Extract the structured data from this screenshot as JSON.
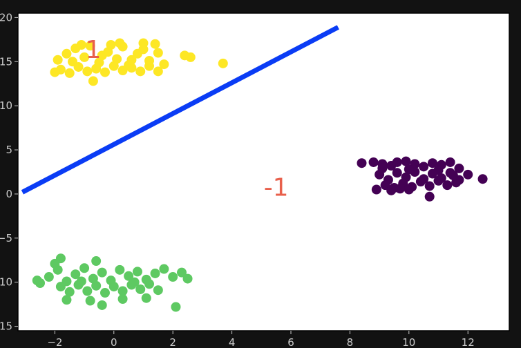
{
  "chart_data": {
    "type": "scatter",
    "title": "",
    "xlabel": "",
    "ylabel": "",
    "xlim": [
      -3.25,
      13.4
    ],
    "ylim": [
      -15.5,
      20.5
    ],
    "grid": false,
    "x_ticks": [
      -2,
      0,
      2,
      4,
      6,
      8,
      10,
      12
    ],
    "y_ticks": [
      -15,
      -10,
      -5,
      0,
      5,
      10,
      15,
      20
    ],
    "colors": {
      "background": "#121212",
      "plot_area": "#ffffff",
      "cluster_yellow": "#fde725",
      "cluster_purple": "#440154",
      "cluster_green": "#5ec962",
      "separator_line": "#0a3cf5",
      "annotation_text": "#e8604c"
    },
    "annotations": [
      {
        "text": "1",
        "x": -0.7,
        "y": 15.4
      },
      {
        "text": "-1",
        "x": 5.5,
        "y": -0.2
      }
    ],
    "decision_line": {
      "x": [
        -3.1,
        7.6
      ],
      "y": 0.2,
      "y_end": 18.9
    },
    "series": [
      {
        "color": "#fde725",
        "points": [
          [
            -1.9,
            15.2
          ],
          [
            -1.6,
            15.9
          ],
          [
            -1.3,
            16.5
          ],
          [
            -1.0,
            15.5
          ],
          [
            -0.8,
            16.8
          ],
          [
            -0.5,
            14.9
          ],
          [
            -0.2,
            16.1
          ],
          [
            0.1,
            15.3
          ],
          [
            0.3,
            16.7
          ],
          [
            0.5,
            14.6
          ],
          [
            0.8,
            15.9
          ],
          [
            1.0,
            16.4
          ],
          [
            1.2,
            15.1
          ],
          [
            1.5,
            16.0
          ],
          [
            1.7,
            14.7
          ],
          [
            -1.8,
            14.1
          ],
          [
            -1.5,
            13.7
          ],
          [
            -1.2,
            14.4
          ],
          [
            -0.9,
            13.9
          ],
          [
            -0.6,
            14.2
          ],
          [
            -0.3,
            13.8
          ],
          [
            0.0,
            14.5
          ],
          [
            0.3,
            14.0
          ],
          [
            0.6,
            14.3
          ],
          [
            0.9,
            13.9
          ],
          [
            1.2,
            14.5
          ],
          [
            1.5,
            13.9
          ],
          [
            -1.4,
            15.0
          ],
          [
            -0.4,
            15.7
          ],
          [
            0.6,
            15.2
          ],
          [
            1.0,
            17.1
          ],
          [
            1.4,
            17.0
          ],
          [
            2.4,
            15.7
          ],
          [
            2.6,
            15.5
          ],
          [
            3.7,
            14.8
          ],
          [
            -2.0,
            13.8
          ],
          [
            -0.7,
            12.8
          ],
          [
            0.2,
            17.1
          ],
          [
            -0.1,
            16.9
          ],
          [
            -1.1,
            16.9
          ]
        ]
      },
      {
        "color": "#440154",
        "points": [
          [
            8.4,
            3.5
          ],
          [
            8.8,
            3.6
          ],
          [
            9.1,
            3.4
          ],
          [
            9.4,
            3.2
          ],
          [
            9.6,
            3.6
          ],
          [
            9.9,
            3.7
          ],
          [
            10.2,
            3.4
          ],
          [
            10.5,
            3.1
          ],
          [
            10.8,
            3.5
          ],
          [
            11.1,
            3.3
          ],
          [
            11.4,
            3.6
          ],
          [
            11.7,
            2.9
          ],
          [
            9.0,
            2.2
          ],
          [
            9.3,
            1.6
          ],
          [
            9.6,
            2.4
          ],
          [
            9.9,
            1.9
          ],
          [
            10.2,
            2.5
          ],
          [
            10.5,
            1.7
          ],
          [
            10.8,
            2.3
          ],
          [
            11.1,
            1.8
          ],
          [
            11.4,
            2.4
          ],
          [
            11.7,
            1.6
          ],
          [
            12.0,
            2.2
          ],
          [
            12.5,
            1.7
          ],
          [
            9.2,
            1.0
          ],
          [
            9.5,
            0.7
          ],
          [
            9.8,
            1.2
          ],
          [
            10.1,
            0.8
          ],
          [
            10.4,
            1.4
          ],
          [
            10.7,
            0.9
          ],
          [
            11.0,
            1.5
          ],
          [
            11.3,
            1.0
          ],
          [
            11.6,
            1.3
          ],
          [
            8.9,
            0.5
          ],
          [
            9.4,
            0.4
          ],
          [
            10.0,
            0.5
          ],
          [
            10.7,
            -0.3
          ],
          [
            9.1,
            2.9
          ],
          [
            10.0,
            2.8
          ],
          [
            11.0,
            2.7
          ],
          [
            11.5,
            2.1
          ],
          [
            9.7,
            0.6
          ]
        ]
      },
      {
        "color": "#5ec962",
        "points": [
          [
            -2.6,
            -9.8
          ],
          [
            -2.2,
            -9.4
          ],
          [
            -1.9,
            -8.6
          ],
          [
            -1.6,
            -9.9
          ],
          [
            -1.3,
            -9.1
          ],
          [
            -1.0,
            -8.4
          ],
          [
            -0.7,
            -9.6
          ],
          [
            -0.4,
            -8.9
          ],
          [
            -0.1,
            -9.8
          ],
          [
            0.2,
            -8.6
          ],
          [
            0.5,
            -9.3
          ],
          [
            0.8,
            -8.8
          ],
          [
            1.1,
            -9.7
          ],
          [
            1.4,
            -9.0
          ],
          [
            1.7,
            -8.5
          ],
          [
            2.0,
            -9.4
          ],
          [
            2.3,
            -8.9
          ],
          [
            2.5,
            -9.6
          ],
          [
            -1.8,
            -10.5
          ],
          [
            -1.5,
            -11.1
          ],
          [
            -1.2,
            -10.3
          ],
          [
            -0.9,
            -11.0
          ],
          [
            -0.6,
            -10.4
          ],
          [
            -0.3,
            -11.2
          ],
          [
            0.0,
            -10.5
          ],
          [
            0.3,
            -11.0
          ],
          [
            0.6,
            -10.3
          ],
          [
            0.9,
            -10.8
          ],
          [
            1.2,
            -10.2
          ],
          [
            1.5,
            -10.9
          ],
          [
            -1.6,
            -12.0
          ],
          [
            -0.8,
            -12.1
          ],
          [
            -0.4,
            -12.6
          ],
          [
            0.3,
            -11.9
          ],
          [
            1.1,
            -11.8
          ],
          [
            -1.8,
            -7.3
          ],
          [
            -2.0,
            -7.9
          ],
          [
            -0.6,
            -7.6
          ],
          [
            2.1,
            -12.8
          ],
          [
            -2.5,
            -10.1
          ],
          [
            0.7,
            -10.0
          ],
          [
            -1.1,
            -9.9
          ]
        ]
      }
    ]
  }
}
